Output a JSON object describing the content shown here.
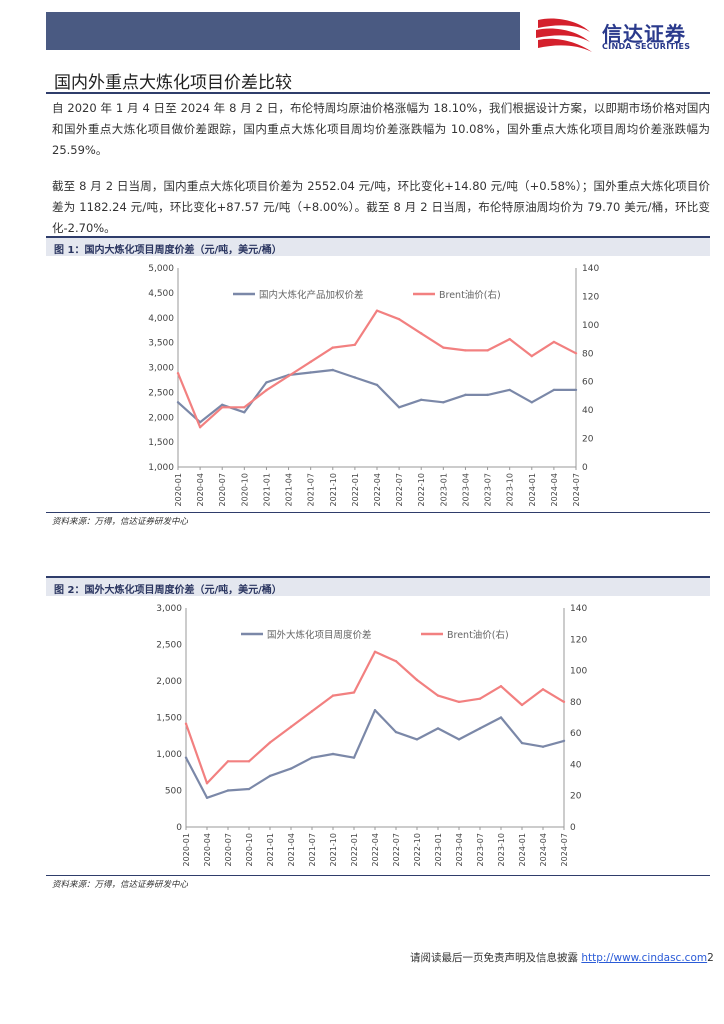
{
  "header": {
    "logo_cn": "信达证券",
    "logo_en": "CINDA SECURITIES",
    "brand_color": "#2a3a8c",
    "accent_red": "#d4202c"
  },
  "section": {
    "title": "国内外重点大炼化项目价差比较"
  },
  "paragraphs": [
    "自 2020 年 1 月 4 日至 2024 年 8 月 2 日，布伦特周均原油价格涨幅为 18.10%，我们根据设计方案，以即期市场价格对国内和国外重点大炼化项目做价差跟踪，国内重点大炼化项目周均价差涨跌幅为 10.08%，国外重点大炼化项目周均价差涨跌幅为 25.59%。",
    "截至 8 月 2 日当周，国内重点大炼化项目价差为 2552.04 元/吨，环比变化+14.80 元/吨（+0.58%）；国外重点大炼化项目价差为 1182.24 元/吨，环比变化+87.57 元/吨（+8.00%）。截至 8 月 2 日当周，布伦特原油周均价为 79.70 美元/桶，环比变化-2.70%。"
  ],
  "figures": [
    {
      "heading": "图 1：国内大炼化项目周度价差（元/吨，美元/桶）",
      "source": "资料来源：万得，信达证券研发中心"
    },
    {
      "heading": "图 2：国外大炼化项目周度价差（元/吨，美元/桶）",
      "source": "资料来源：万得，信达证券研发中心"
    }
  ],
  "chart_data": [
    {
      "type": "line",
      "title": "国内大炼化项目周度价差",
      "ylim_left": [
        1000,
        5000
      ],
      "ylim_right": [
        0,
        140
      ],
      "yticks_left": [
        "5,000",
        "4,500",
        "4,000",
        "3,500",
        "3,000",
        "2,500",
        "2,000",
        "1,500",
        "1,000"
      ],
      "yticks_right": [
        "140",
        "120",
        "100",
        "80",
        "60",
        "40",
        "20",
        "0"
      ],
      "categories": [
        "2020-01",
        "2020-04",
        "2020-07",
        "2020-10",
        "2021-01",
        "2021-04",
        "2021-07",
        "2021-10",
        "2022-01",
        "2022-04",
        "2022-07",
        "2022-10",
        "2023-01",
        "2023-04",
        "2023-07",
        "2023-10",
        "2024-01",
        "2024-04",
        "2024-07"
      ],
      "series": [
        {
          "name": "国内大炼化产品加权价差",
          "axis": "left",
          "color": "#7b88a8",
          "values": [
            2300,
            1900,
            2250,
            2100,
            2700,
            2850,
            2900,
            2950,
            2800,
            2650,
            2200,
            2350,
            2300,
            2450,
            2450,
            2550,
            2300,
            2550,
            2550
          ]
        },
        {
          "name": "Brent油价(右)",
          "axis": "right",
          "color": "#f28080",
          "values": [
            66,
            28,
            42,
            42,
            54,
            64,
            74,
            84,
            86,
            110,
            104,
            94,
            84,
            82,
            82,
            90,
            78,
            88,
            80
          ]
        }
      ]
    },
    {
      "type": "line",
      "title": "国外大炼化项目周度价差",
      "ylim_left": [
        0,
        3000
      ],
      "ylim_right": [
        0,
        140
      ],
      "yticks_left": [
        "3,000",
        "2,500",
        "2,000",
        "1,500",
        "1,000",
        "500",
        "0"
      ],
      "yticks_right": [
        "140",
        "120",
        "100",
        "80",
        "60",
        "40",
        "20",
        "0"
      ],
      "categories": [
        "2020-01",
        "2020-04",
        "2020-07",
        "2020-10",
        "2021-01",
        "2021-04",
        "2021-07",
        "2021-10",
        "2022-01",
        "2022-04",
        "2022-07",
        "2022-10",
        "2023-01",
        "2023-04",
        "2023-07",
        "2023-10",
        "2024-01",
        "2024-04",
        "2024-07"
      ],
      "series": [
        {
          "name": "国外大炼化项目周度价差",
          "axis": "left",
          "color": "#7b88a8",
          "values": [
            950,
            400,
            500,
            520,
            700,
            800,
            950,
            1000,
            950,
            1600,
            1300,
            1200,
            1350,
            1200,
            1350,
            1500,
            1150,
            1100,
            1180
          ]
        },
        {
          "name": "Brent油价(右)",
          "axis": "right",
          "color": "#f28080",
          "values": [
            66,
            28,
            42,
            42,
            54,
            64,
            74,
            84,
            86,
            112,
            106,
            94,
            84,
            80,
            82,
            90,
            78,
            88,
            80
          ]
        }
      ]
    }
  ],
  "footer": {
    "text": "请阅读最后一页免责声明及信息披露",
    "link": "http://www.cindasc.com",
    "page": "2"
  }
}
